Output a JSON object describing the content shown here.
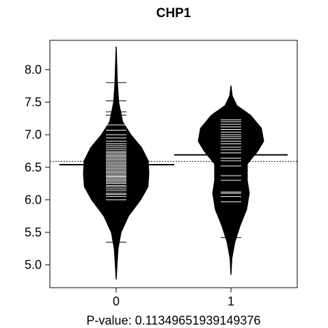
{
  "chart_data": {
    "type": "beanplot",
    "title": "CHP1",
    "xlabel": "P-value: 0.11349651939149376",
    "ylabel": "",
    "categories": [
      "0",
      "1"
    ],
    "y_ticks": [
      5.0,
      5.5,
      6.0,
      6.5,
      7.0,
      7.5,
      8.0
    ],
    "y_tick_labels": [
      "5.0",
      "5.5",
      "6.0",
      "6.5",
      "7.0",
      "7.5",
      "8.0"
    ],
    "ylim": [
      4.65,
      8.45
    ],
    "overall_mean": 6.59,
    "series": [
      {
        "category": "0",
        "mean": 6.54,
        "observations": [
          5.35,
          5.67,
          5.9,
          6.0,
          6.05,
          6.08,
          6.1,
          6.14,
          6.17,
          6.2,
          6.22,
          6.25,
          6.27,
          6.29,
          6.31,
          6.33,
          6.35,
          6.36,
          6.38,
          6.4,
          6.42,
          6.44,
          6.46,
          6.48,
          6.5,
          6.52,
          6.54,
          6.56,
          6.58,
          6.6,
          6.62,
          6.64,
          6.66,
          6.68,
          6.7,
          6.72,
          6.74,
          6.77,
          6.8,
          6.83,
          6.86,
          6.9,
          6.95,
          7.0,
          7.07,
          7.15,
          7.3,
          7.35,
          7.52,
          7.8
        ],
        "density": [
          [
            4.78,
            0.005
          ],
          [
            5.0,
            0.03
          ],
          [
            5.25,
            0.06
          ],
          [
            5.5,
            0.15
          ],
          [
            5.75,
            0.38
          ],
          [
            6.0,
            0.75
          ],
          [
            6.2,
            0.97
          ],
          [
            6.4,
            1.0
          ],
          [
            6.6,
            0.98
          ],
          [
            6.8,
            0.78
          ],
          [
            7.0,
            0.45
          ],
          [
            7.2,
            0.2
          ],
          [
            7.5,
            0.08
          ],
          [
            7.8,
            0.04
          ],
          [
            8.1,
            0.02
          ],
          [
            8.35,
            0.005
          ]
        ]
      },
      {
        "category": "1",
        "mean": 6.69,
        "observations": [
          5.42,
          5.77,
          5.97,
          6.05,
          6.1,
          6.12,
          6.3,
          6.37,
          6.52,
          6.6,
          6.64,
          6.72,
          6.77,
          6.81,
          6.86,
          6.9,
          6.94,
          6.97,
          7.0,
          7.04,
          7.08,
          7.12,
          7.16,
          7.2,
          7.23
        ],
        "density": [
          [
            4.85,
            0.005
          ],
          [
            5.1,
            0.03
          ],
          [
            5.35,
            0.12
          ],
          [
            5.6,
            0.28
          ],
          [
            5.85,
            0.48
          ],
          [
            6.1,
            0.56
          ],
          [
            6.3,
            0.5
          ],
          [
            6.55,
            0.5
          ],
          [
            6.75,
            0.82
          ],
          [
            6.9,
            1.0
          ],
          [
            7.1,
            0.93
          ],
          [
            7.3,
            0.6
          ],
          [
            7.45,
            0.18
          ],
          [
            7.6,
            0.04
          ],
          [
            7.75,
            0.005
          ]
        ]
      }
    ]
  }
}
